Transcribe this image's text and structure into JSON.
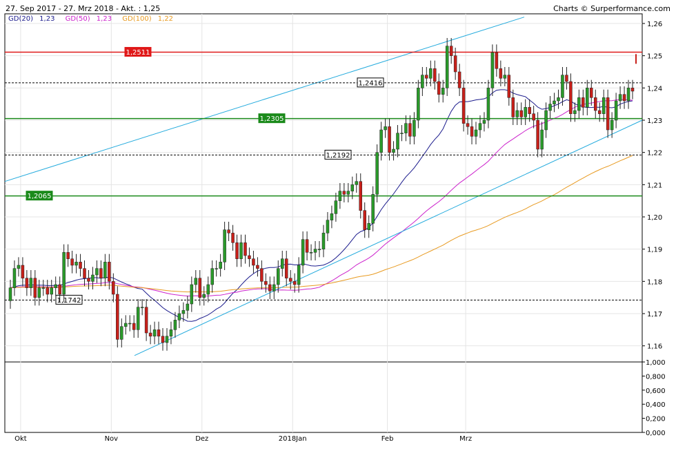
{
  "header": {
    "title": "27. Sep 2017 - 27. Mrz 2018 - Akt. : 1,25",
    "credit": "Charts © Surperformance.com"
  },
  "legend": [
    {
      "label": "GD(20)",
      "value": "1,23",
      "color": "#1a1a8c"
    },
    {
      "label": "GD(50)",
      "value": "1,23",
      "color": "#cc22cc"
    },
    {
      "label": "GD(100)",
      "value": "1,22",
      "color": "#e89a20"
    }
  ],
  "chart_data": {
    "type": "candlestick",
    "ylim": [
      1.155,
      1.263
    ],
    "y_ticks": [
      "1,16",
      "1,17",
      "1,18",
      "1,19",
      "1,20",
      "1,21",
      "1,22",
      "1,23",
      "1,24",
      "1,25",
      "1,26"
    ],
    "x_labels": [
      "Okt",
      "Nov",
      "Dez",
      "2018Jan",
      "Feb",
      "Mrz"
    ],
    "volume_ticks": [
      "0,000",
      "0,200",
      "0,400",
      "0,600",
      "0,800",
      "1,000"
    ],
    "close_values": [
      1.178,
      1.184,
      1.185,
      1.181,
      1.178,
      1.181,
      1.175,
      1.178,
      1.178,
      1.176,
      1.178,
      1.179,
      1.176,
      1.189,
      1.187,
      1.185,
      1.186,
      1.184,
      1.181,
      1.18,
      1.182,
      1.184,
      1.181,
      1.186,
      1.18,
      1.176,
      1.162,
      1.166,
      1.167,
      1.167,
      1.165,
      1.172,
      1.172,
      1.164,
      1.163,
      1.165,
      1.163,
      1.161,
      1.163,
      1.165,
      1.168,
      1.17,
      1.171,
      1.173,
      1.179,
      1.181,
      1.175,
      1.176,
      1.179,
      1.184,
      1.184,
      1.186,
      1.196,
      1.195,
      1.192,
      1.187,
      1.192,
      1.188,
      1.187,
      1.185,
      1.184,
      1.18,
      1.179,
      1.177,
      1.179,
      1.184,
      1.187,
      1.181,
      1.18,
      1.179,
      1.185,
      1.193,
      1.189,
      1.189,
      1.19,
      1.19,
      1.195,
      1.199,
      1.201,
      1.205,
      1.208,
      1.207,
      1.208,
      1.21,
      1.211,
      1.202,
      1.196,
      1.198,
      1.207,
      1.22,
      1.227,
      1.228,
      1.22,
      1.221,
      1.226,
      1.226,
      1.229,
      1.225,
      1.23,
      1.24,
      1.244,
      1.243,
      1.246,
      1.242,
      1.238,
      1.24,
      1.253,
      1.25,
      1.245,
      1.24,
      1.229,
      1.228,
      1.225,
      1.227,
      1.229,
      1.23,
      1.24,
      1.251,
      1.246,
      1.243,
      1.244,
      1.237,
      1.231,
      1.233,
      1.231,
      1.234,
      1.232,
      1.23,
      1.221,
      1.227,
      1.233,
      1.235,
      1.236,
      1.237,
      1.244,
      1.242,
      1.232,
      1.233,
      1.237,
      1.234,
      1.24,
      1.237,
      1.233,
      1.232,
      1.237,
      1.227,
      1.23,
      1.236,
      1.238,
      1.236,
      1.24,
      1.239
    ],
    "last_value": 1.249,
    "horizontal_levels": [
      {
        "value": 1.2511,
        "label": "1,2511",
        "style": "red-solid"
      },
      {
        "value": 1.2416,
        "label": "1,2416",
        "style": "black-dashed"
      },
      {
        "value": 1.2305,
        "label": "1,2305",
        "style": "green-solid"
      },
      {
        "value": 1.2192,
        "label": "1,2192",
        "style": "black-dashed"
      },
      {
        "value": 1.2065,
        "label": "1,2065",
        "style": "green-solid"
      },
      {
        "value": 1.1742,
        "label": "1,1742",
        "style": "black-dashed"
      }
    ],
    "channel_upper": {
      "start": 1.211,
      "end": 1.262
    },
    "channel_lower": {
      "start": 1.157,
      "end": 1.23
    },
    "moving_averages": [
      {
        "name": "GD(20)",
        "period": 20,
        "color": "#1a1a8c"
      },
      {
        "name": "GD(50)",
        "period": 50,
        "color": "#cc22cc"
      },
      {
        "name": "GD(100)",
        "period": 100,
        "color": "#e89a20"
      }
    ],
    "colors": {
      "up": "#2a9a2a",
      "down": "#c8201a",
      "grid": "#e4e4e4",
      "channel": "#22aadd"
    }
  }
}
